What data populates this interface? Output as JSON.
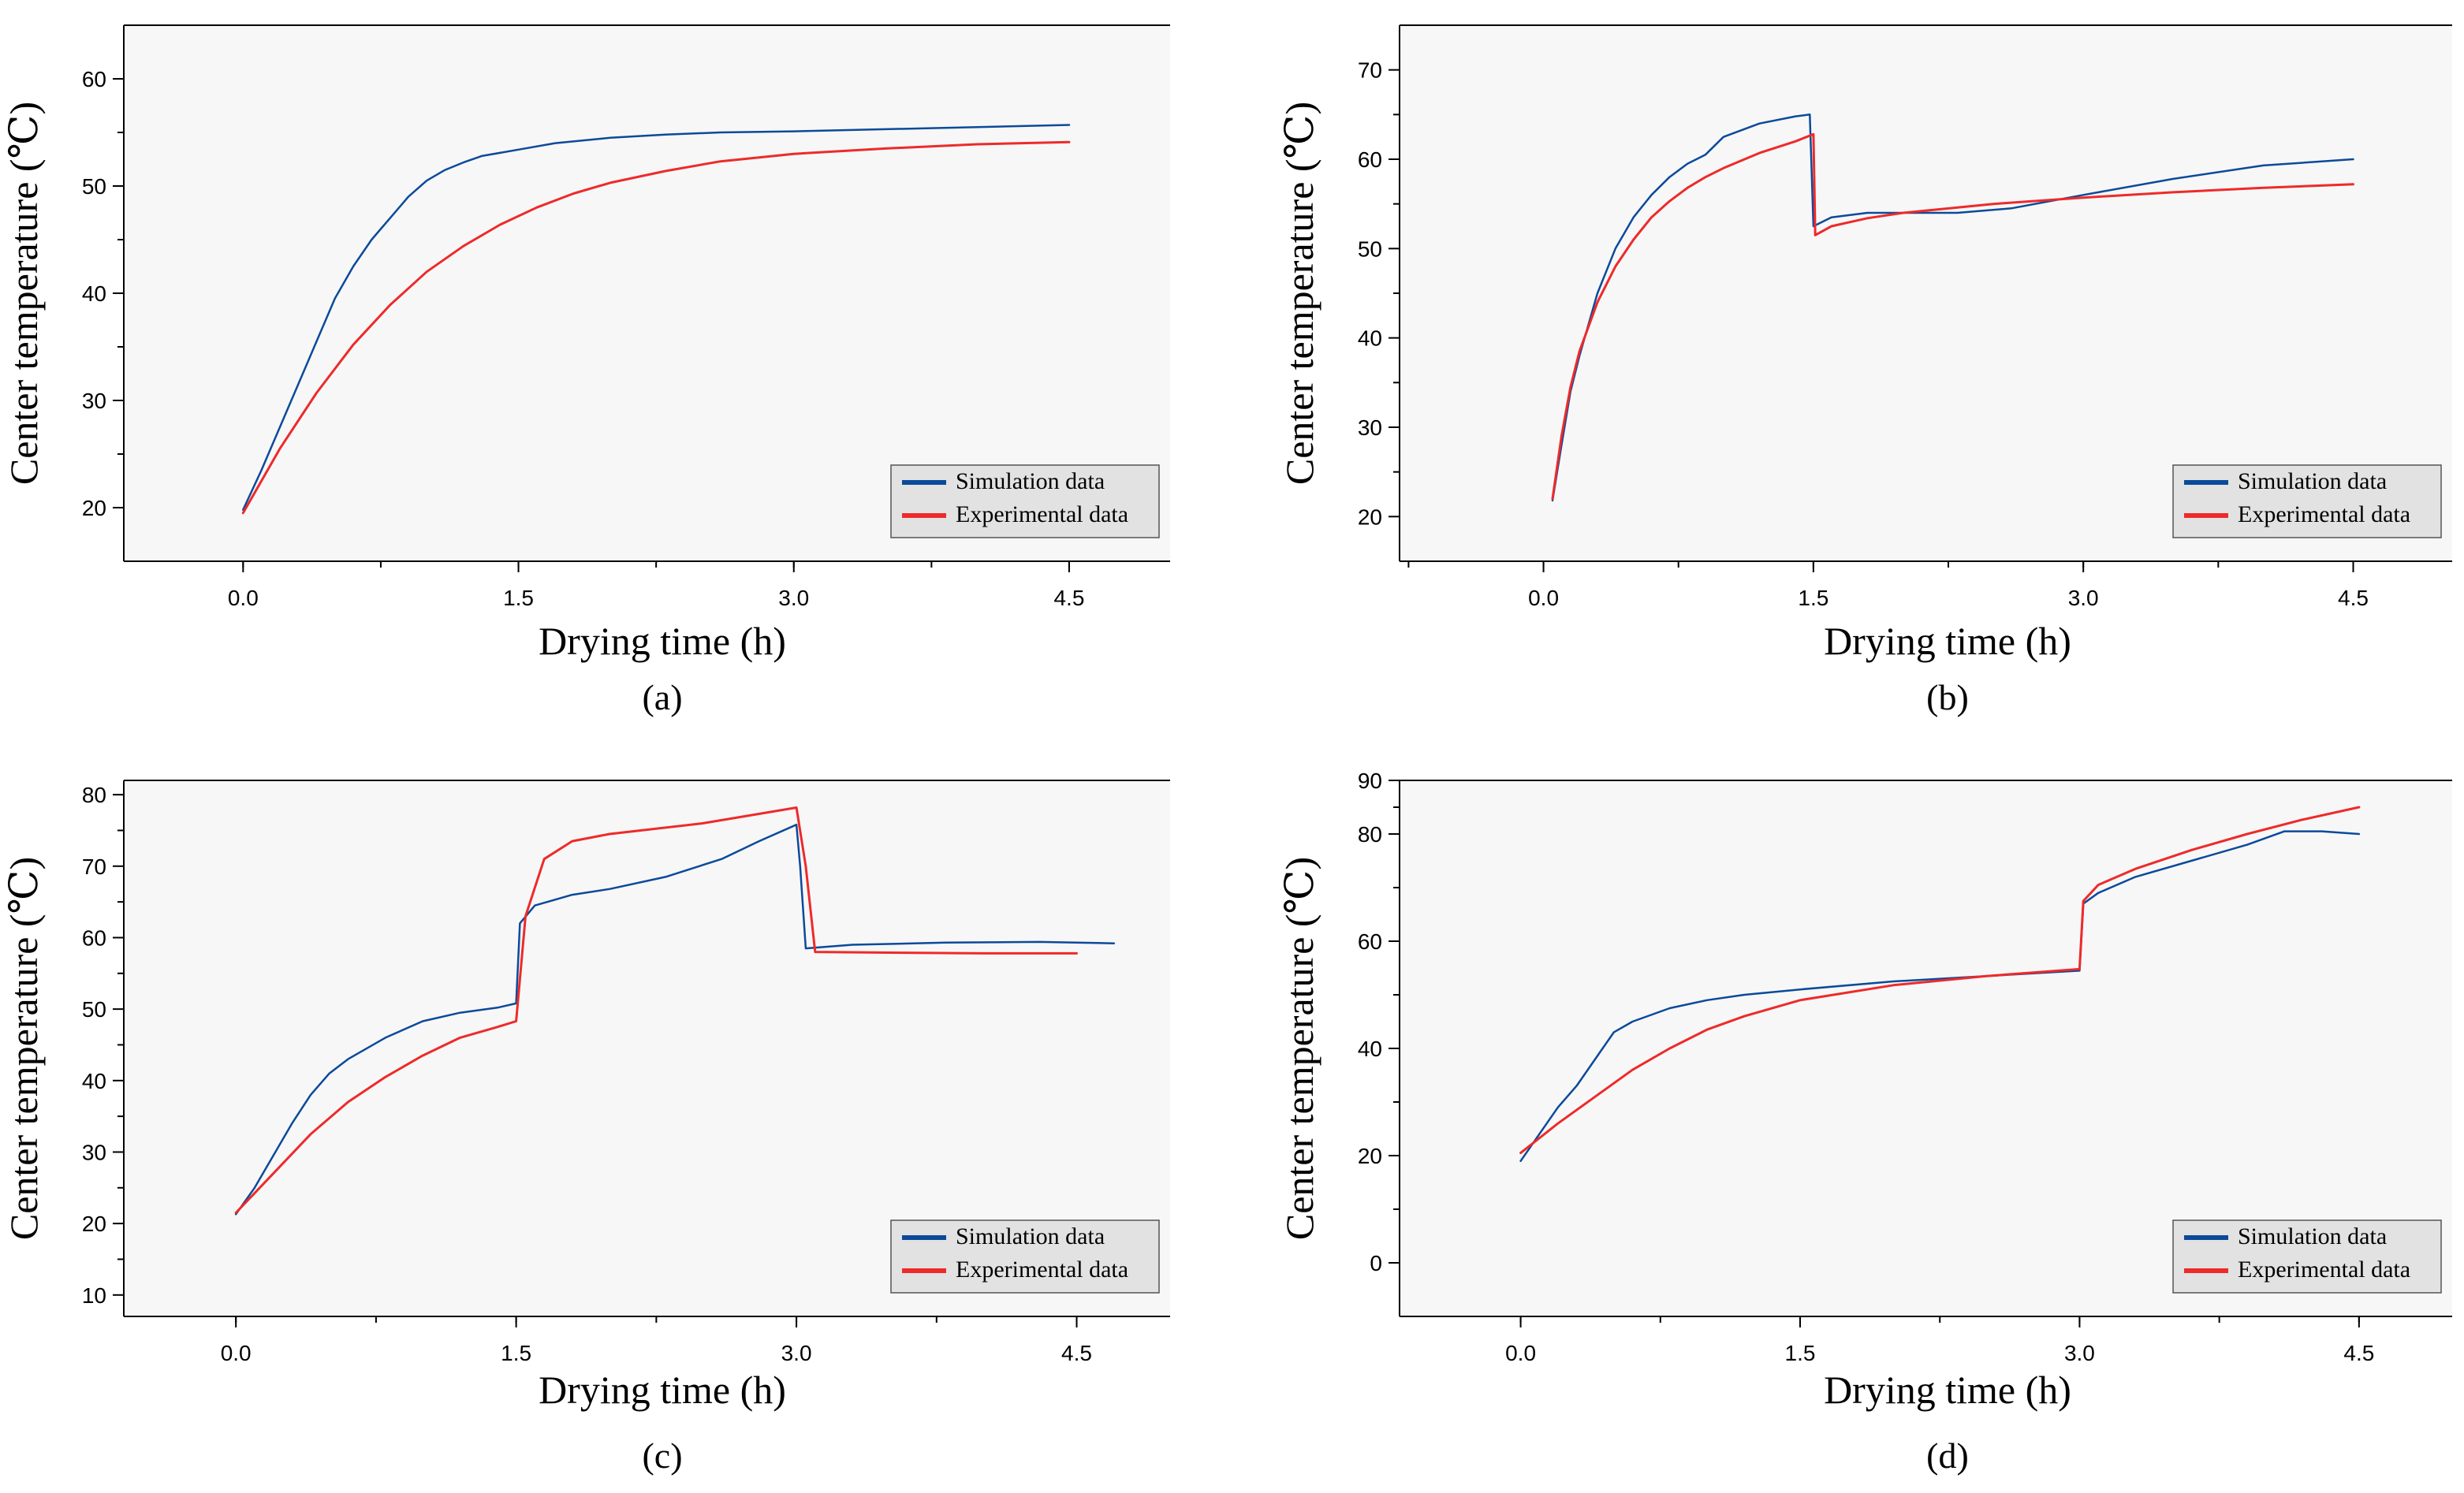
{
  "colors": {
    "simulation": "#0b4a9a",
    "experimental": "#ee2a2a"
  },
  "legend": {
    "simulation": "Simulation data",
    "experimental": "Experimental data"
  },
  "chart_data": [
    {
      "type": "line",
      "panel": "(a)",
      "xlabel": "Drying time (h)",
      "ylabel": "Center temperature (℃)",
      "xlim": [
        -0.65,
        5.05
      ],
      "ylim": [
        15,
        65
      ],
      "xticks": [
        "0.0",
        "1.5",
        "3.0",
        "4.5"
      ],
      "yticks": [
        "20",
        "30",
        "40",
        "50",
        "60"
      ],
      "legend_position": "bottom-right",
      "series": [
        {
          "name": "Simulation data",
          "x": [
            0,
            0.1,
            0.2,
            0.3,
            0.4,
            0.5,
            0.6,
            0.7,
            0.8,
            0.9,
            1.0,
            1.1,
            1.2,
            1.3,
            1.5,
            1.7,
            2.0,
            2.3,
            2.6,
            3.0,
            3.5,
            4.0,
            4.5
          ],
          "y": [
            19.8,
            23.5,
            27.5,
            31.5,
            35.5,
            39.5,
            42.5,
            45,
            47,
            49,
            50.5,
            51.5,
            52.2,
            52.8,
            53.4,
            54,
            54.5,
            54.8,
            55,
            55.1,
            55.3,
            55.5,
            55.7
          ]
        },
        {
          "name": "Experimental data",
          "x": [
            0,
            0.2,
            0.4,
            0.6,
            0.8,
            1.0,
            1.2,
            1.4,
            1.6,
            1.8,
            2.0,
            2.3,
            2.6,
            3.0,
            3.5,
            4.0,
            4.5
          ],
          "y": [
            19.5,
            25.5,
            30.7,
            35.2,
            38.9,
            42,
            44.4,
            46.4,
            48,
            49.3,
            50.3,
            51.4,
            52.3,
            53,
            53.5,
            53.9,
            54.1
          ]
        }
      ]
    },
    {
      "type": "line",
      "panel": "(b)",
      "xlabel": "Drying time (h)",
      "ylabel": "Center temperature (℃)",
      "xlim": [
        -0.8,
        5.05
      ],
      "ylim": [
        15,
        75
      ],
      "xticks": [
        "0.0",
        "1.5",
        "3.0",
        "4.5"
      ],
      "yticks": [
        "20",
        "30",
        "40",
        "50",
        "60",
        "70"
      ],
      "legend_position": "bottom-right",
      "series": [
        {
          "name": "Simulation data",
          "x": [
            0.05,
            0.1,
            0.15,
            0.2,
            0.3,
            0.4,
            0.5,
            0.6,
            0.7,
            0.8,
            0.9,
            1.0,
            1.2,
            1.4,
            1.48,
            1.5,
            1.6,
            1.8,
            2.0,
            2.3,
            2.6,
            3.0,
            3.5,
            4.0,
            4.5
          ],
          "y": [
            21.8,
            28,
            34,
            38,
            45,
            50,
            53.5,
            56,
            58,
            59.5,
            60.5,
            62.5,
            64,
            64.8,
            65,
            52.5,
            53.5,
            54,
            54,
            54,
            54.5,
            56,
            57.8,
            59.3,
            60
          ]
        },
        {
          "name": "Experimental data",
          "x": [
            0.05,
            0.1,
            0.15,
            0.2,
            0.3,
            0.4,
            0.5,
            0.6,
            0.7,
            0.8,
            0.9,
            1.0,
            1.2,
            1.4,
            1.5,
            1.51,
            1.6,
            1.8,
            2.0,
            2.5,
            3.0,
            3.5,
            4.0,
            4.5
          ],
          "y": [
            22,
            29,
            34.5,
            38.5,
            44,
            48,
            51,
            53.5,
            55.3,
            56.8,
            58,
            59,
            60.7,
            62,
            62.8,
            51.5,
            52.5,
            53.4,
            54,
            55,
            55.7,
            56.3,
            56.8,
            57.2
          ]
        }
      ]
    },
    {
      "type": "line",
      "panel": "(c)",
      "xlabel": "Drying time (h)",
      "ylabel": "Center temperature (℃)",
      "xlim": [
        -0.6,
        5.0
      ],
      "ylim": [
        7,
        82
      ],
      "xticks": [
        "0.0",
        "1.5",
        "3.0",
        "4.5"
      ],
      "yticks": [
        "10",
        "20",
        "30",
        "40",
        "50",
        "60",
        "70",
        "80"
      ],
      "legend_position": "bottom-right",
      "series": [
        {
          "name": "Simulation data",
          "x": [
            0,
            0.1,
            0.2,
            0.3,
            0.4,
            0.5,
            0.6,
            0.8,
            1.0,
            1.2,
            1.4,
            1.5,
            1.52,
            1.6,
            1.8,
            2.0,
            2.3,
            2.6,
            2.8,
            3.0,
            3.02,
            3.05,
            3.3,
            3.8,
            4.3,
            4.7
          ],
          "y": [
            21.3,
            25,
            29.5,
            34,
            38,
            41,
            43,
            46,
            48.3,
            49.5,
            50.2,
            50.8,
            62,
            64.5,
            66,
            66.8,
            68.5,
            71,
            73.5,
            75.8,
            70,
            58.5,
            59,
            59.3,
            59.4,
            59.2
          ]
        },
        {
          "name": "Experimental data",
          "x": [
            0,
            0.2,
            0.4,
            0.6,
            0.8,
            1.0,
            1.2,
            1.4,
            1.5,
            1.55,
            1.65,
            1.8,
            2.0,
            2.5,
            3.0,
            3.05,
            3.1,
            3.5,
            4.0,
            4.5
          ],
          "y": [
            21.5,
            27,
            32.5,
            37,
            40.5,
            43.5,
            46,
            47.5,
            48.3,
            63,
            71,
            73.5,
            74.5,
            76,
            78.2,
            70,
            58,
            57.9,
            57.8,
            57.8
          ]
        }
      ]
    },
    {
      "type": "line",
      "panel": "(d)",
      "xlabel": "Drying time (h)",
      "ylabel": "Center temperature (℃)",
      "xlim": [
        -0.65,
        5.0
      ],
      "ylim": [
        -10,
        90
      ],
      "xticks": [
        "0.0",
        "1.5",
        "3.0",
        "4.5"
      ],
      "yticks": [
        "0",
        "20",
        "40",
        "60",
        "80",
        "90"
      ],
      "legend_position": "bottom-right",
      "series": [
        {
          "name": "Simulation data",
          "x": [
            0,
            0.1,
            0.2,
            0.3,
            0.4,
            0.5,
            0.6,
            0.8,
            1.0,
            1.2,
            1.5,
            2.0,
            2.5,
            3.0,
            3.02,
            3.1,
            3.3,
            3.6,
            3.9,
            4.1,
            4.3,
            4.5
          ],
          "y": [
            19,
            24,
            29,
            33,
            38,
            43,
            45,
            47.5,
            49,
            50,
            51,
            52.5,
            53.5,
            54.5,
            67,
            69,
            72,
            75,
            78,
            80.5,
            80.5,
            80
          ]
        },
        {
          "name": "Experimental data",
          "x": [
            0,
            0.2,
            0.4,
            0.6,
            0.8,
            1.0,
            1.2,
            1.5,
            2.0,
            2.5,
            3.0,
            3.02,
            3.1,
            3.3,
            3.6,
            3.9,
            4.2,
            4.5
          ],
          "y": [
            20.5,
            26,
            31,
            36,
            40,
            43.5,
            46,
            49,
            51.8,
            53.5,
            54.8,
            67.5,
            70.5,
            73.5,
            77,
            80,
            82.7,
            85
          ]
        }
      ]
    }
  ]
}
